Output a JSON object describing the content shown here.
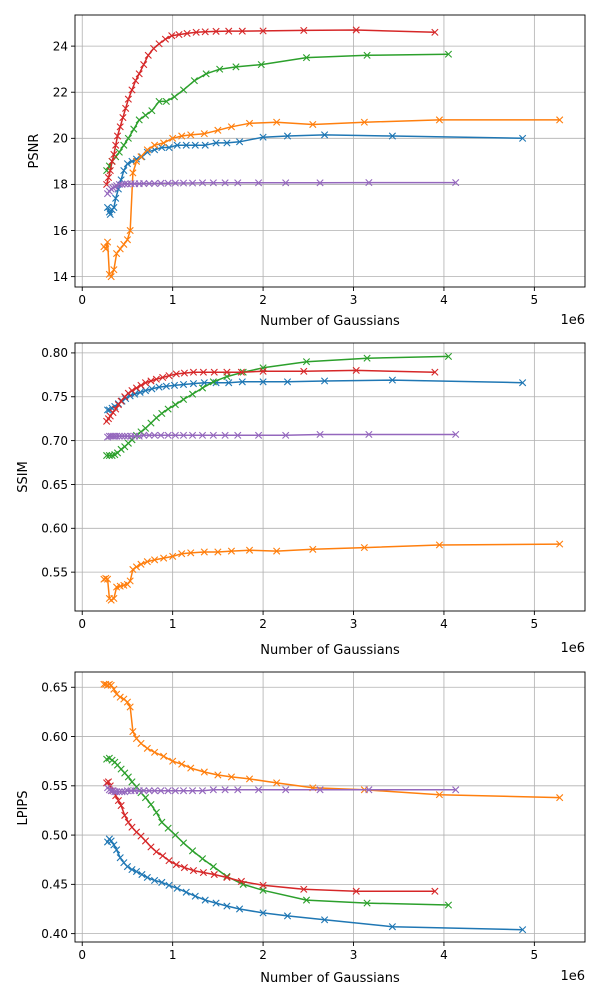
{
  "colors": {
    "blue": "#1f77b4",
    "orange": "#ff7f0e",
    "green": "#2ca02c",
    "red": "#d62728",
    "purple": "#9467bd",
    "grid": "#b0b0b0",
    "axis": "#000000"
  },
  "chart_data": [
    {
      "type": "line",
      "title": "",
      "xlabel": "Number of Gaussians",
      "ylabel": "PSNR",
      "x_offset_label": "1e6",
      "xlim": [
        -0.08,
        5.56
      ],
      "ylim": [
        13.55,
        25.35
      ],
      "xticks": [
        0,
        1,
        2,
        3,
        4,
        5
      ],
      "xtick_labels": [
        "0",
        "1",
        "2",
        "3",
        "4",
        "5"
      ],
      "yticks": [
        14,
        16,
        18,
        20,
        22,
        24
      ],
      "ytick_labels": [
        "14",
        "16",
        "18",
        "20",
        "22",
        "24"
      ],
      "grid": true,
      "marker": "x",
      "series": [
        {
          "name": "blue",
          "color_key": "blue",
          "x": [
            0.28,
            0.3,
            0.31,
            0.33,
            0.35,
            0.37,
            0.4,
            0.43,
            0.46,
            0.5,
            0.55,
            0.6,
            0.66,
            0.72,
            0.8,
            0.88,
            0.96,
            1.05,
            1.15,
            1.25,
            1.36,
            1.48,
            1.6,
            1.74,
            2.0,
            2.27,
            2.68,
            3.43,
            4.87
          ],
          "y": [
            17.0,
            16.8,
            16.7,
            16.9,
            17.0,
            17.4,
            17.8,
            18.2,
            18.6,
            18.9,
            19.0,
            19.1,
            19.2,
            19.4,
            19.5,
            19.6,
            19.6,
            19.7,
            19.7,
            19.7,
            19.7,
            19.8,
            19.8,
            19.85,
            20.05,
            20.1,
            20.15,
            20.1,
            20.0
          ]
        },
        {
          "name": "orange",
          "color_key": "orange",
          "x": [
            0.24,
            0.26,
            0.28,
            0.3,
            0.32,
            0.35,
            0.38,
            0.42,
            0.46,
            0.5,
            0.53,
            0.56,
            0.6,
            0.65,
            0.72,
            0.8,
            0.9,
            1.0,
            1.1,
            1.2,
            1.35,
            1.5,
            1.65,
            1.85,
            2.15,
            2.55,
            3.12,
            3.95,
            5.28
          ],
          "y": [
            15.3,
            15.2,
            15.5,
            14.1,
            14.0,
            14.3,
            15.0,
            15.2,
            15.4,
            15.6,
            16.0,
            18.5,
            19.0,
            19.2,
            19.5,
            19.7,
            19.8,
            20.0,
            20.1,
            20.15,
            20.2,
            20.35,
            20.5,
            20.65,
            20.7,
            20.6,
            20.7,
            20.8,
            20.8
          ]
        },
        {
          "name": "green",
          "color_key": "green",
          "x": [
            0.27,
            0.3,
            0.33,
            0.37,
            0.41,
            0.46,
            0.51,
            0.57,
            0.63,
            0.7,
            0.77,
            0.85,
            0.93,
            1.02,
            1.12,
            1.24,
            1.37,
            1.52,
            1.7,
            1.98,
            2.48,
            3.15,
            4.05
          ],
          "y": [
            18.6,
            18.8,
            19.0,
            19.2,
            19.4,
            19.7,
            20.0,
            20.4,
            20.8,
            21.0,
            21.2,
            21.6,
            21.6,
            21.8,
            22.1,
            22.5,
            22.8,
            23.0,
            23.1,
            23.2,
            23.5,
            23.6,
            23.65
          ]
        },
        {
          "name": "red",
          "color_key": "red",
          "x": [
            0.27,
            0.29,
            0.31,
            0.33,
            0.35,
            0.37,
            0.39,
            0.42,
            0.45,
            0.48,
            0.51,
            0.55,
            0.59,
            0.63,
            0.68,
            0.73,
            0.79,
            0.85,
            0.92,
            0.99,
            1.07,
            1.16,
            1.26,
            1.36,
            1.48,
            1.62,
            1.77,
            2.0,
            2.45,
            3.03,
            3.9
          ],
          "y": [
            18.0,
            18.3,
            18.6,
            19.0,
            19.3,
            19.7,
            20.1,
            20.5,
            20.9,
            21.3,
            21.7,
            22.1,
            22.5,
            22.8,
            23.2,
            23.6,
            23.9,
            24.1,
            24.3,
            24.45,
            24.5,
            24.55,
            24.6,
            24.62,
            24.64,
            24.65,
            24.65,
            24.66,
            24.68,
            24.7,
            24.6
          ]
        },
        {
          "name": "purple",
          "color_key": "purple",
          "x": [
            0.28,
            0.3,
            0.32,
            0.34,
            0.36,
            0.38,
            0.41,
            0.44,
            0.47,
            0.5,
            0.54,
            0.58,
            0.63,
            0.68,
            0.74,
            0.8,
            0.87,
            0.95,
            1.03,
            1.12,
            1.22,
            1.33,
            1.45,
            1.58,
            1.72,
            1.95,
            2.25,
            2.63,
            3.17,
            4.13
          ],
          "y": [
            17.6,
            17.7,
            17.8,
            17.85,
            17.9,
            17.95,
            18.0,
            18.0,
            18.02,
            18.02,
            18.03,
            18.03,
            18.03,
            18.04,
            18.04,
            18.04,
            18.05,
            18.05,
            18.06,
            18.06,
            18.06,
            18.07,
            18.07,
            18.07,
            18.07,
            18.07,
            18.07,
            18.07,
            18.08,
            18.08
          ]
        }
      ]
    },
    {
      "type": "line",
      "title": "",
      "xlabel": "Number of Gaussians",
      "ylabel": "SSIM",
      "x_offset_label": "1e6",
      "xlim": [
        -0.08,
        5.56
      ],
      "ylim": [
        0.5057,
        0.8113
      ],
      "xticks": [
        0,
        1,
        2,
        3,
        4,
        5
      ],
      "xtick_labels": [
        "0",
        "1",
        "2",
        "3",
        "4",
        "5"
      ],
      "yticks": [
        0.55,
        0.6,
        0.65,
        0.7,
        0.75,
        0.8
      ],
      "ytick_labels": [
        "0.55",
        "0.60",
        "0.65",
        "0.70",
        "0.75",
        "0.80"
      ],
      "grid": true,
      "marker": "x",
      "series": [
        {
          "name": "blue",
          "color_key": "blue",
          "x": [
            0.28,
            0.3,
            0.33,
            0.36,
            0.4,
            0.44,
            0.48,
            0.53,
            0.58,
            0.64,
            0.7,
            0.77,
            0.85,
            0.93,
            1.02,
            1.12,
            1.23,
            1.35,
            1.48,
            1.62,
            1.77,
            2.0,
            2.27,
            2.68,
            3.43,
            4.87
          ],
          "y": [
            0.735,
            0.735,
            0.737,
            0.739,
            0.742,
            0.745,
            0.748,
            0.751,
            0.753,
            0.755,
            0.757,
            0.759,
            0.761,
            0.762,
            0.763,
            0.764,
            0.765,
            0.766,
            0.766,
            0.766,
            0.767,
            0.767,
            0.767,
            0.768,
            0.769,
            0.766
          ]
        },
        {
          "name": "orange",
          "color_key": "orange",
          "x": [
            0.24,
            0.26,
            0.28,
            0.3,
            0.32,
            0.35,
            0.38,
            0.42,
            0.46,
            0.5,
            0.53,
            0.56,
            0.6,
            0.65,
            0.72,
            0.8,
            0.9,
            1.0,
            1.1,
            1.2,
            1.35,
            1.5,
            1.65,
            1.85,
            2.15,
            2.55,
            3.12,
            3.95,
            5.28
          ],
          "y": [
            0.542,
            0.543,
            0.542,
            0.52,
            0.518,
            0.52,
            0.533,
            0.534,
            0.535,
            0.536,
            0.54,
            0.553,
            0.556,
            0.559,
            0.562,
            0.564,
            0.566,
            0.568,
            0.571,
            0.572,
            0.573,
            0.573,
            0.574,
            0.575,
            0.574,
            0.576,
            0.578,
            0.581,
            0.582
          ]
        },
        {
          "name": "green",
          "color_key": "green",
          "x": [
            0.27,
            0.3,
            0.33,
            0.36,
            0.39,
            0.43,
            0.47,
            0.51,
            0.55,
            0.6,
            0.65,
            0.7,
            0.76,
            0.82,
            0.88,
            0.95,
            1.03,
            1.12,
            1.22,
            1.33,
            1.45,
            1.6,
            1.78,
            2.0,
            2.48,
            3.15,
            4.05
          ],
          "y": [
            0.683,
            0.683,
            0.683,
            0.684,
            0.686,
            0.69,
            0.693,
            0.697,
            0.701,
            0.706,
            0.71,
            0.714,
            0.72,
            0.726,
            0.731,
            0.736,
            0.741,
            0.747,
            0.753,
            0.76,
            0.767,
            0.773,
            0.778,
            0.783,
            0.79,
            0.794,
            0.796
          ]
        },
        {
          "name": "red",
          "color_key": "red",
          "x": [
            0.27,
            0.29,
            0.31,
            0.34,
            0.37,
            0.4,
            0.43,
            0.47,
            0.51,
            0.55,
            0.6,
            0.65,
            0.7,
            0.76,
            0.82,
            0.89,
            0.96,
            1.04,
            1.13,
            1.23,
            1.34,
            1.46,
            1.6,
            1.76,
            2.0,
            2.45,
            3.03,
            3.9
          ],
          "y": [
            0.722,
            0.725,
            0.728,
            0.732,
            0.736,
            0.741,
            0.745,
            0.75,
            0.754,
            0.757,
            0.76,
            0.763,
            0.766,
            0.768,
            0.77,
            0.772,
            0.774,
            0.776,
            0.777,
            0.778,
            0.778,
            0.778,
            0.778,
            0.778,
            0.779,
            0.779,
            0.78,
            0.778
          ]
        },
        {
          "name": "purple",
          "color_key": "purple",
          "x": [
            0.28,
            0.3,
            0.32,
            0.34,
            0.36,
            0.38,
            0.41,
            0.44,
            0.47,
            0.5,
            0.54,
            0.58,
            0.63,
            0.68,
            0.74,
            0.8,
            0.87,
            0.95,
            1.03,
            1.12,
            1.22,
            1.33,
            1.45,
            1.58,
            1.72,
            1.95,
            2.25,
            2.63,
            3.17,
            4.13
          ],
          "y": [
            0.704,
            0.705,
            0.705,
            0.705,
            0.705,
            0.705,
            0.705,
            0.705,
            0.705,
            0.705,
            0.705,
            0.705,
            0.705,
            0.706,
            0.706,
            0.706,
            0.706,
            0.706,
            0.706,
            0.706,
            0.706,
            0.706,
            0.706,
            0.706,
            0.706,
            0.706,
            0.706,
            0.707,
            0.707,
            0.707
          ]
        }
      ]
    },
    {
      "type": "line",
      "title": "",
      "xlabel": "Number of Gaussians",
      "ylabel": "LPIPS",
      "x_offset_label": "1e6",
      "xlim": [
        -0.08,
        5.56
      ],
      "ylim": [
        0.3915,
        0.6655
      ],
      "xticks": [
        0,
        1,
        2,
        3,
        4,
        5
      ],
      "xtick_labels": [
        "0",
        "1",
        "2",
        "3",
        "4",
        "5"
      ],
      "yticks": [
        0.4,
        0.45,
        0.5,
        0.55,
        0.6,
        0.65
      ],
      "ytick_labels": [
        "0.40",
        "0.45",
        "0.50",
        "0.55",
        "0.60",
        "0.65"
      ],
      "grid": true,
      "marker": "x",
      "series": [
        {
          "name": "blue",
          "color_key": "blue",
          "x": [
            0.28,
            0.3,
            0.32,
            0.35,
            0.38,
            0.42,
            0.46,
            0.5,
            0.55,
            0.6,
            0.66,
            0.72,
            0.8,
            0.88,
            0.96,
            1.05,
            1.15,
            1.25,
            1.36,
            1.48,
            1.6,
            1.74,
            2.0,
            2.27,
            2.68,
            3.43,
            4.87
          ],
          "y": [
            0.493,
            0.496,
            0.494,
            0.49,
            0.485,
            0.477,
            0.472,
            0.468,
            0.465,
            0.463,
            0.46,
            0.457,
            0.454,
            0.452,
            0.449,
            0.446,
            0.442,
            0.438,
            0.434,
            0.431,
            0.428,
            0.425,
            0.421,
            0.418,
            0.414,
            0.407,
            0.404
          ]
        },
        {
          "name": "orange",
          "color_key": "orange",
          "x": [
            0.24,
            0.26,
            0.28,
            0.3,
            0.32,
            0.35,
            0.38,
            0.42,
            0.46,
            0.5,
            0.53,
            0.56,
            0.6,
            0.65,
            0.72,
            0.8,
            0.9,
            1.0,
            1.1,
            1.2,
            1.35,
            1.5,
            1.65,
            1.85,
            2.15,
            2.55,
            3.12,
            3.95,
            5.28
          ],
          "y": [
            0.653,
            0.653,
            0.652,
            0.653,
            0.652,
            0.648,
            0.643,
            0.64,
            0.638,
            0.635,
            0.63,
            0.605,
            0.598,
            0.593,
            0.588,
            0.584,
            0.58,
            0.575,
            0.572,
            0.568,
            0.564,
            0.561,
            0.559,
            0.557,
            0.553,
            0.548,
            0.546,
            0.541,
            0.538
          ]
        },
        {
          "name": "green",
          "color_key": "green",
          "x": [
            0.27,
            0.3,
            0.33,
            0.36,
            0.39,
            0.43,
            0.47,
            0.51,
            0.55,
            0.6,
            0.65,
            0.7,
            0.76,
            0.82,
            0.88,
            0.95,
            1.03,
            1.12,
            1.22,
            1.33,
            1.45,
            1.6,
            1.78,
            2.0,
            2.48,
            3.15,
            4.05
          ],
          "y": [
            0.577,
            0.578,
            0.576,
            0.574,
            0.571,
            0.567,
            0.563,
            0.559,
            0.554,
            0.549,
            0.543,
            0.538,
            0.531,
            0.523,
            0.513,
            0.507,
            0.5,
            0.492,
            0.484,
            0.476,
            0.468,
            0.458,
            0.45,
            0.444,
            0.434,
            0.431,
            0.429
          ]
        },
        {
          "name": "red",
          "color_key": "red",
          "x": [
            0.27,
            0.29,
            0.31,
            0.34,
            0.37,
            0.4,
            0.43,
            0.47,
            0.51,
            0.55,
            0.6,
            0.65,
            0.7,
            0.76,
            0.82,
            0.89,
            0.96,
            1.04,
            1.13,
            1.23,
            1.34,
            1.46,
            1.6,
            1.76,
            2.0,
            2.45,
            3.03,
            3.9
          ],
          "y": [
            0.553,
            0.554,
            0.55,
            0.545,
            0.54,
            0.535,
            0.53,
            0.52,
            0.513,
            0.508,
            0.503,
            0.499,
            0.494,
            0.488,
            0.483,
            0.479,
            0.474,
            0.47,
            0.467,
            0.464,
            0.462,
            0.46,
            0.457,
            0.453,
            0.449,
            0.445,
            0.443,
            0.443
          ]
        },
        {
          "name": "purple",
          "color_key": "purple",
          "x": [
            0.28,
            0.3,
            0.32,
            0.34,
            0.36,
            0.38,
            0.41,
            0.44,
            0.47,
            0.5,
            0.54,
            0.58,
            0.63,
            0.68,
            0.74,
            0.8,
            0.87,
            0.95,
            1.03,
            1.12,
            1.22,
            1.33,
            1.45,
            1.58,
            1.72,
            1.95,
            2.25,
            2.63,
            3.17,
            4.13
          ],
          "y": [
            0.548,
            0.546,
            0.545,
            0.545,
            0.544,
            0.544,
            0.544,
            0.544,
            0.544,
            0.545,
            0.545,
            0.545,
            0.545,
            0.545,
            0.545,
            0.545,
            0.545,
            0.545,
            0.545,
            0.545,
            0.545,
            0.545,
            0.546,
            0.546,
            0.546,
            0.546,
            0.546,
            0.546,
            0.546,
            0.546
          ]
        }
      ]
    }
  ]
}
